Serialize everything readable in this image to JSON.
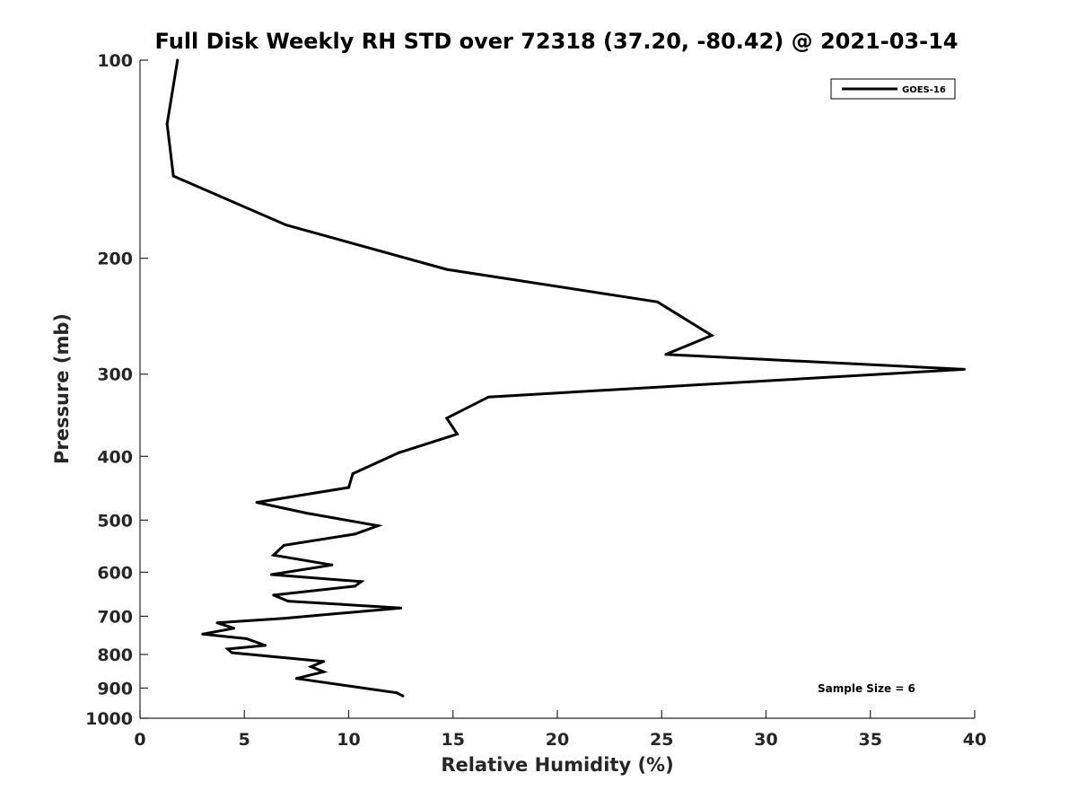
{
  "chart_data": {
    "type": "line",
    "title": "Full Disk Weekly RH STD over 72318 (37.20, -80.42) @ 2021-03-14",
    "xlabel": "Relative Humidity (%)",
    "ylabel": "Pressure (mb)",
    "xlim": [
      0,
      40
    ],
    "ylim": [
      100,
      1000
    ],
    "y_scale": "log",
    "y_reversed": true,
    "x_ticks": [
      "0",
      "5",
      "10",
      "15",
      "20",
      "25",
      "30",
      "35",
      "40"
    ],
    "y_ticks": [
      "100",
      "200",
      "300",
      "400",
      "500",
      "600",
      "700",
      "800",
      "900",
      "1000"
    ],
    "grid": false,
    "legend_position": "top-right",
    "annotation": "Sample Size = 6",
    "series": [
      {
        "name": "GOES-16",
        "color": "#000000",
        "points": [
          [
            1.8,
            100
          ],
          [
            1.3,
            125
          ],
          [
            1.6,
            150
          ],
          [
            7.0,
            178
          ],
          [
            14.7,
            208
          ],
          [
            24.8,
            233
          ],
          [
            27.4,
            262
          ],
          [
            25.2,
            280
          ],
          [
            39.5,
            295
          ],
          [
            16.7,
            325
          ],
          [
            14.7,
            350
          ],
          [
            15.2,
            370
          ],
          [
            12.4,
            395
          ],
          [
            10.2,
            425
          ],
          [
            10.0,
            446
          ],
          [
            5.6,
            470
          ],
          [
            8.0,
            488
          ],
          [
            11.4,
            510
          ],
          [
            10.3,
            525
          ],
          [
            6.9,
            546
          ],
          [
            6.4,
            565
          ],
          [
            9.2,
            585
          ],
          [
            6.3,
            605
          ],
          [
            10.6,
            620
          ],
          [
            10.3,
            630
          ],
          [
            6.4,
            650
          ],
          [
            7.1,
            664
          ],
          [
            12.5,
            680
          ],
          [
            6.9,
            705
          ],
          [
            3.7,
            716
          ],
          [
            4.5,
            730
          ],
          [
            3.0,
            745
          ],
          [
            5.1,
            757
          ],
          [
            6.0,
            775
          ],
          [
            4.2,
            785
          ],
          [
            4.4,
            795
          ],
          [
            8.8,
            820
          ],
          [
            8.2,
            835
          ],
          [
            8.8,
            850
          ],
          [
            7.5,
            870
          ],
          [
            12.3,
            915
          ],
          [
            12.6,
            925
          ]
        ]
      }
    ]
  }
}
